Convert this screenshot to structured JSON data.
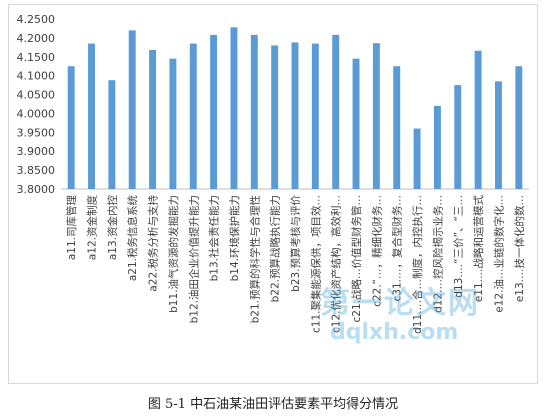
{
  "caption": "图 5-1  中石油某油田评估要素平均得分情况",
  "watermark": {
    "line1": "第一论文网",
    "line2": "dqlxh.com"
  },
  "chart_data": {
    "type": "bar",
    "title": "",
    "xlabel": "",
    "ylabel": "",
    "ylim": [
      3.8,
      4.25
    ],
    "yticks": [
      "3.8000",
      "3.8500",
      "3.9000",
      "3.9500",
      "4.0000",
      "4.0500",
      "4.1000",
      "4.1500",
      "4.2000",
      "4.2500"
    ],
    "grid": false,
    "legend": "none",
    "bar_color": "#5b9bd5",
    "categories": [
      "a11.司库管理",
      "a12.资金制度",
      "a13.资金内控",
      "a21.税务信息系统",
      "a22.税务分析与支持",
      "b11.油气资源的发掘能力",
      "b12.油田企业价值提升能力",
      "b13.社会责任能力",
      "b14.环境保护能力",
      "b21.预算的科学性与合理性",
      "b22.预算战略执行能力",
      "b23.预算考核与评价",
      "c11.聚集能源保供，项目效…",
      "c12.优化资产结构，高效利…",
      "c21.战略…价值型财务管…",
      "c22.“…，精细化财务…",
      "c31.…，复合型财务…",
      "d11.…合…制度，内控执行…",
      "d12.…控风险揭示业务…",
      "d13.…“三价”、“三…",
      "e11.…战略和运营模式",
      "e12.油…业链的数字化…",
      "e13.…技一体化的数…"
    ],
    "values": [
      4.125,
      4.185,
      4.088,
      4.22,
      4.168,
      4.145,
      4.185,
      4.208,
      4.228,
      4.208,
      4.18,
      4.188,
      4.185,
      4.208,
      4.145,
      4.186,
      4.125,
      3.96,
      4.02,
      4.075,
      4.166,
      4.085,
      4.125
    ]
  }
}
